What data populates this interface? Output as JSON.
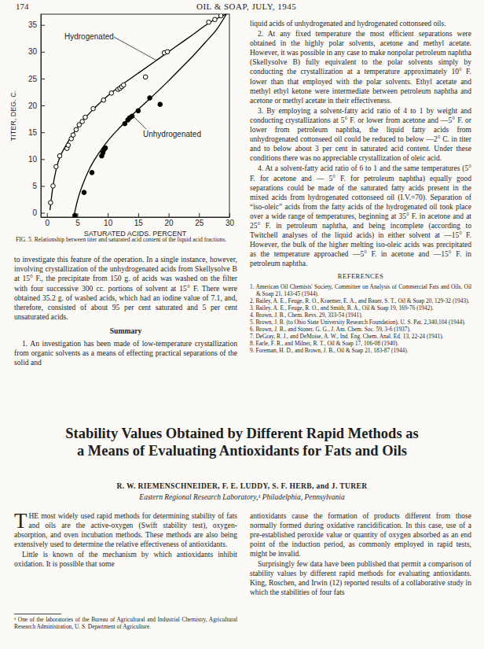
{
  "page": {
    "number": "174",
    "running_head": "OIL & SOAP, JULY, 1945"
  },
  "chart_data": {
    "type": "scatter",
    "title": "FIG. 5. Relationship between titer and saturated acid content of the liquid acid fractions.",
    "x_label": "SATURATED ACIDS, PERCENT",
    "y_label": "TITER, DEG. C.",
    "xlim": [
      -1,
      30
    ],
    "ylim": [
      -0.8,
      37
    ],
    "xticks": [
      0,
      5,
      10,
      15,
      20,
      25,
      30
    ],
    "yticks": [
      0,
      5,
      10,
      15,
      20,
      25,
      30,
      35
    ],
    "grid": false,
    "series": [
      {
        "name": "Hydrogenated",
        "type": "line",
        "color": "#000000",
        "x": [
          0.5,
          1,
          1.5,
          2,
          3,
          4,
          5,
          6,
          8,
          10,
          12,
          15,
          18,
          21,
          24,
          27,
          29.5
        ],
        "values": [
          0.5,
          5,
          8,
          10,
          12.3,
          14.2,
          15.8,
          17.3,
          19.7,
          21.8,
          23.6,
          26.0,
          28.4,
          30.8,
          33.2,
          35.6,
          37
        ]
      },
      {
        "name": "Unhydrogenated",
        "type": "line",
        "color": "#000000",
        "x": [
          4.4,
          5,
          6,
          7,
          8,
          9,
          10,
          12,
          14,
          16,
          18,
          20,
          22,
          24,
          26,
          28,
          29.5
        ],
        "values": [
          -0.8,
          2.2,
          5.6,
          8.2,
          10.2,
          11.9,
          13.4,
          15.9,
          18.2,
          20.3,
          22.4,
          24.6,
          26.9,
          29.2,
          31.7,
          34.3,
          37
        ]
      },
      {
        "type": "scatter",
        "marker": "open-circle",
        "color": "#000000",
        "x": [
          0.6,
          1.0,
          1.5,
          2.1,
          3.3,
          3.5,
          4.0,
          4.3,
          4.8,
          5.3,
          5.8,
          6.3,
          7.6,
          9.3,
          10.6,
          11.7,
          12.0,
          12.3,
          12.6,
          16.2,
          19.3,
          19.8,
          26.6,
          27.6,
          28.6
        ],
        "values": [
          1.9,
          5.0,
          8.6,
          10.6,
          12.0,
          12.6,
          13.8,
          14.5,
          15.5,
          16.4,
          17.0,
          17.8,
          19.4,
          21.0,
          22.3,
          23.0,
          23.2,
          23.5,
          23.8,
          25.3,
          29.8,
          30.0,
          35.5,
          36.0,
          36.7
        ]
      },
      {
        "type": "scatter",
        "marker": "filled-circle",
        "color": "#000000",
        "x": [
          4.6,
          6.1,
          7.4,
          9.0,
          9.2,
          9.4,
          9.6,
          12.8,
          13.3,
          13.6,
          14.0,
          15.0,
          16.9,
          18.6
        ],
        "values": [
          -0.5,
          3.8,
          7.5,
          10.6,
          11.2,
          11.8,
          12.1,
          16.6,
          17.3,
          17.7,
          18.0,
          19.0,
          21.4,
          20.2
        ]
      }
    ]
  },
  "left_column": {
    "paragraphs": [
      "to investigate this feature of the operation. In a single instance, however, involving crystallization of the unhydrogenated acids from Skellysolve B at 15° F., the precipitate from 150 g. of acids was washed on the filter with four successive 300 cc. portions of solvent at 15° F. There were obtained 35.2 g. of washed acids, which had an iodine value of 7.1, and, therefore, consisted of about 95 per cent saturated and 5 per cent unsaturated acids."
    ],
    "heading": "Summary",
    "summary": [
      "1. An investigation has been made of low-temperature crystallization from organic solvents as a means of effecting practical separations of the solid and"
    ]
  },
  "right_column": {
    "paragraphs": [
      "liquid acids of unhydrogenated and hydrogenated cottonseed oils.",
      "2. At any fixed temperature the most efficient separations were obtained in the highly polar solvents, acetone and methyl acetate. However, it was possible in any case to make nonpolar petroleum naphtha (Skellysolve B) fully equivalent to the polar solvents simply by conducting the crystallization at a temperature approximately 10° F. lower than that employed with the polar solvents. Ethyl acetate and methyl ethyl ketone were intermediate between petroleum naphtha and acetone or methyl acetate in their effectiveness.",
      "3. By employing a solvent-fatty acid ratio of 4 to 1 by weight and conducting crystallizations at 5° F. or lower from acetone and —5° F. or lower from petroleum naphtha, the liquid fatty acids from unhydrogenated cottonseed oil could be reduced to below —2° C. in titer and to below about 3 per cent in saturated acid content. Under these conditions there was no appreciable crystallization of oleic acid.",
      "4. At a solvent-fatty acid ratio of 6 to 1 and the same temperatures (5° F. for acetone and — 5° F. for petroleum naphtha) equally good separations could be made of the saturated fatty acids present in the mixed acids from hydrogenated cottonseed oil (I.V.=70). Separation of “iso-oleic” acids from the fatty acids of the hydrogenated oil took place over a wide range of temperatures, beginning at 35° F. in acetone and at 25° F. in petroleum naphtha, and being incomplete (according to Twitchell analyses of the liquid acids) in either solvent at —15° F. However, the bulk of the higher melting iso-oleic acids was precipitated as the temperature approached —5° F. in acetone and —15° F. in petroleum naphtha."
    ],
    "references_heading": "REFERENCES",
    "references": [
      "1. American Oil Chemists' Society, Committee on Analysis of Commercial Fats and Oils, Oil & Soap 21, 143-45 (1944).",
      "2. Bailey, A. E., Feuge, R. O., Kraemer, E. A., and Bauer, S. T., Oil & Soap 20, 129-32 (1943).",
      "3. Bailey, A. E., Feuge, R. O., and Smith, B. A., Oil & Soap 19, 169-76 (1942).",
      "4. Brown, J. B., Chem. Revs. 29, 333-54 (1941).",
      "5. Brown, J. B. (to Ohio State University Research Foundation), U. S. Pat. 2,340,104 (1944).",
      "6. Brown, J. B., and Stoner, G. G., J. Am. Chem. Soc. 59, 3-6 (1937).",
      "7. DeGray, R. J., and DeMoise, A. W., Ind. Eng. Chem. Anal. Ed. 13, 22-24 (1941).",
      "8. Earle, F. R., and Milner, R. T., Oil & Soap 17, 106-08 (1940).",
      "9. Foreman, H. D., and Brown, J. B., Oil & Soap 21, 183-87 (1944)."
    ]
  },
  "article": {
    "title": "Stability Values Obtained by Different Rapid Methods as a Means of Evaluating Antioxidants for Fats and Oils",
    "authors": "R. W. RIEMENSCHNEIDER, F. E. LUDDY, S. F. HERB, and J. TURER",
    "affiliation": "Eastern Regional Research Laboratory,¹ Philadelphia, Pennsylvania",
    "left_paragraphs": [
      "THE most widely used rapid methods for determining stability of fats and oils are the active-oxygen (Swift stability test), oxygen-absorption, and oven incubation methods. These methods are also being extensively used to determine the relative effectiveness of antioxidants.",
      "Little is known of the mechanism by which antioxidants inhibit oxidation. It is possible that some"
    ],
    "footnote": "¹ One of the laboratories of the Bureau of Agricultural and Industrial Chemistry, Agricultural Research Administration, U. S. Department of Agriculture.",
    "right_paragraphs": [
      "antioxidants cause the formation of products different from those normally formed during oxidative rancidification. In this case, use of a pre-established peroxide value or quantity of oxygen absorbed as an end point of the induction period, as commonly employed in rapid tests, might be invalid.",
      "Surprisingly few data have been published that permit a comparison of stability values by different rapid methods for evaluating antioxidants. King, Roschen, and Irwin (12) reported results of a collaborative study in which the stabilities of four fats"
    ]
  }
}
